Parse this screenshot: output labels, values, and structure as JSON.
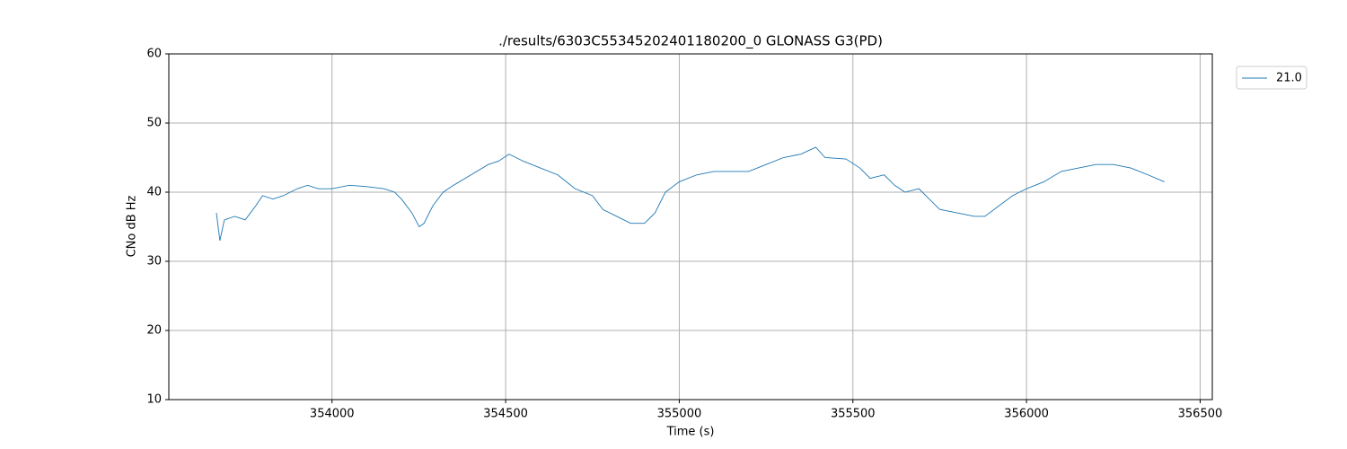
{
  "chart_data": {
    "type": "line",
    "title": "./results/6303C55345202401180200_0 GLONASS G3(PD)",
    "xlabel": "Time (s)",
    "ylabel": "CNo dB Hz",
    "x": [
      353667,
      353677,
      353690,
      353720,
      353750,
      353780,
      353800,
      353830,
      353860,
      353900,
      353930,
      353960,
      354000,
      354050,
      354100,
      354150,
      354180,
      354200,
      354230,
      354251,
      354265,
      354290,
      354320,
      354350,
      354400,
      354450,
      354480,
      354510,
      354550,
      354600,
      354650,
      354700,
      354750,
      354780,
      354820,
      354860,
      354900,
      354930,
      354960,
      355000,
      355050,
      355100,
      355150,
      355200,
      355250,
      355300,
      355350,
      355393,
      355420,
      355480,
      355520,
      355550,
      355590,
      355620,
      355650,
      355690,
      355720,
      355750,
      355800,
      355850,
      355880,
      355920,
      355960,
      356000,
      356050,
      356100,
      356150,
      356200,
      356250,
      356300,
      356350,
      356397
    ],
    "series": [
      {
        "name": "21.0",
        "color": "#1f77b4",
        "values": [
          37,
          33,
          36,
          36.5,
          36,
          38,
          39.5,
          39,
          39.5,
          40.5,
          41,
          40.5,
          40.5,
          41,
          40.8,
          40.5,
          40,
          39,
          37,
          35,
          35.5,
          38,
          40,
          41,
          42.5,
          44,
          44.5,
          45.5,
          44.5,
          43.5,
          42.5,
          40.5,
          39.5,
          37.5,
          36.5,
          35.5,
          35.5,
          37,
          40,
          41.5,
          42.5,
          43,
          43,
          43,
          44,
          45,
          45.5,
          46.5,
          45,
          44.8,
          43.5,
          42,
          42.5,
          41,
          40,
          40.5,
          39,
          37.5,
          37,
          36.5,
          36.5,
          38,
          39.5,
          40.5,
          41.5,
          43,
          43.5,
          44,
          44,
          43.5,
          42.5,
          41.5
        ]
      }
    ],
    "xlim": [
      353530,
      356535
    ],
    "xticks": [
      354000,
      354500,
      355000,
      355500,
      356000,
      356500
    ],
    "ylim": [
      10,
      60
    ],
    "yticks": [
      10,
      20,
      30,
      40,
      50,
      60
    ],
    "grid": true,
    "legend": "outside-upper-right"
  }
}
